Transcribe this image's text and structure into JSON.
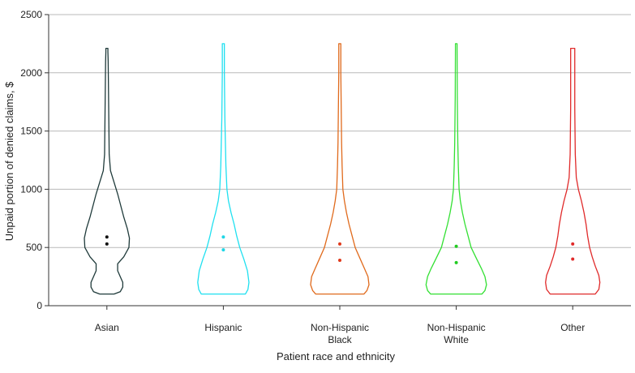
{
  "chart_data": {
    "type": "violin",
    "xlabel": "Patient race and ethnicity",
    "ylabel": "Unpaid portion of denied claims, $",
    "ylim": [
      0,
      2500
    ],
    "yticks": [
      0,
      500,
      1000,
      1500,
      2000,
      2500
    ],
    "grid": "horizontal",
    "categories": [
      {
        "label_lines": [
          "Asian"
        ],
        "color": "#1f3a3a",
        "marker_color": "#111111",
        "mean": 590,
        "median": 530,
        "min": 100,
        "max": 2210,
        "profile": [
          [
            100,
            0.14
          ],
          [
            120,
            0.26
          ],
          [
            160,
            0.31
          ],
          [
            200,
            0.31
          ],
          [
            260,
            0.25
          ],
          [
            300,
            0.21
          ],
          [
            360,
            0.21
          ],
          [
            420,
            0.33
          ],
          [
            500,
            0.43
          ],
          [
            580,
            0.44
          ],
          [
            660,
            0.4
          ],
          [
            760,
            0.33
          ],
          [
            860,
            0.27
          ],
          [
            960,
            0.21
          ],
          [
            1060,
            0.14
          ],
          [
            1160,
            0.07
          ],
          [
            1300,
            0.045
          ],
          [
            1500,
            0.04
          ],
          [
            1700,
            0.035
          ],
          [
            1900,
            0.03
          ],
          [
            2100,
            0.025
          ],
          [
            2180,
            0.02
          ],
          [
            2210,
            0.02
          ]
        ]
      },
      {
        "label_lines": [
          "Hispanic"
        ],
        "color": "#1fe0f0",
        "marker_color": "#1fd6e6",
        "mean": 590,
        "median": 480,
        "min": 100,
        "max": 2250,
        "profile": [
          [
            100,
            0.43
          ],
          [
            140,
            0.48
          ],
          [
            200,
            0.5
          ],
          [
            300,
            0.47
          ],
          [
            400,
            0.4
          ],
          [
            500,
            0.32
          ],
          [
            600,
            0.26
          ],
          [
            700,
            0.21
          ],
          [
            800,
            0.15
          ],
          [
            900,
            0.1
          ],
          [
            1000,
            0.07
          ],
          [
            1200,
            0.05
          ],
          [
            1400,
            0.04
          ],
          [
            1600,
            0.03
          ],
          [
            1800,
            0.025
          ],
          [
            2000,
            0.02
          ],
          [
            2200,
            0.02
          ],
          [
            2250,
            0.02
          ]
        ]
      },
      {
        "label_lines": [
          "Non-Hispanic",
          "Black"
        ],
        "color": "#e06a1c",
        "marker_color": "#e03a1c",
        "mean": 530,
        "median": 390,
        "min": 100,
        "max": 2250,
        "profile": [
          [
            100,
            0.47
          ],
          [
            130,
            0.53
          ],
          [
            180,
            0.57
          ],
          [
            250,
            0.55
          ],
          [
            320,
            0.48
          ],
          [
            400,
            0.4
          ],
          [
            500,
            0.3
          ],
          [
            600,
            0.24
          ],
          [
            700,
            0.18
          ],
          [
            800,
            0.13
          ],
          [
            900,
            0.09
          ],
          [
            1000,
            0.06
          ],
          [
            1200,
            0.045
          ],
          [
            1400,
            0.035
          ],
          [
            1600,
            0.03
          ],
          [
            1800,
            0.025
          ],
          [
            2000,
            0.02
          ],
          [
            2200,
            0.02
          ],
          [
            2250,
            0.02
          ]
        ]
      },
      {
        "label_lines": [
          "Non-Hispanic",
          "White"
        ],
        "color": "#33e033",
        "marker_color": "#22cc22",
        "mean": 510,
        "median": 370,
        "min": 100,
        "max": 2250,
        "profile": [
          [
            100,
            0.5
          ],
          [
            130,
            0.56
          ],
          [
            180,
            0.59
          ],
          [
            250,
            0.56
          ],
          [
            320,
            0.49
          ],
          [
            400,
            0.4
          ],
          [
            500,
            0.29
          ],
          [
            600,
            0.23
          ],
          [
            700,
            0.17
          ],
          [
            800,
            0.12
          ],
          [
            900,
            0.08
          ],
          [
            1000,
            0.055
          ],
          [
            1200,
            0.04
          ],
          [
            1400,
            0.03
          ],
          [
            1600,
            0.025
          ],
          [
            1800,
            0.02
          ],
          [
            2000,
            0.018
          ],
          [
            2200,
            0.016
          ],
          [
            2250,
            0.016
          ]
        ]
      },
      {
        "label_lines": [
          "Other"
        ],
        "color": "#e02a2a",
        "marker_color": "#e02a2a",
        "mean": 530,
        "median": 400,
        "min": 100,
        "max": 2210,
        "profile": [
          [
            100,
            0.44
          ],
          [
            140,
            0.51
          ],
          [
            200,
            0.53
          ],
          [
            260,
            0.51
          ],
          [
            340,
            0.44
          ],
          [
            420,
            0.38
          ],
          [
            500,
            0.33
          ],
          [
            600,
            0.29
          ],
          [
            700,
            0.26
          ],
          [
            800,
            0.22
          ],
          [
            900,
            0.17
          ],
          [
            1000,
            0.11
          ],
          [
            1100,
            0.07
          ],
          [
            1300,
            0.05
          ],
          [
            1500,
            0.045
          ],
          [
            1700,
            0.04
          ],
          [
            1900,
            0.04
          ],
          [
            2100,
            0.04
          ],
          [
            2210,
            0.04
          ]
        ]
      }
    ]
  }
}
